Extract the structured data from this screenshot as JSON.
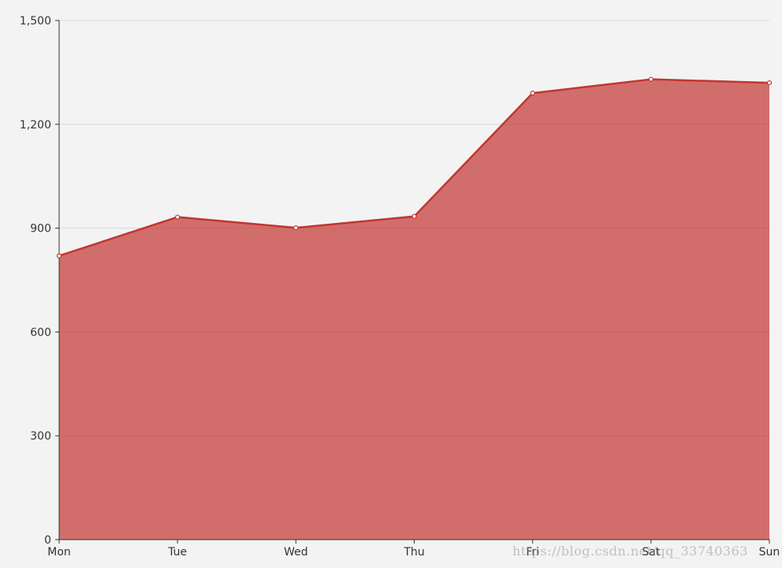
{
  "chart_data": {
    "type": "area",
    "categories": [
      "Mon",
      "Tue",
      "Wed",
      "Thu",
      "Fri",
      "Sat",
      "Sun"
    ],
    "values": [
      820,
      932,
      901,
      934,
      1290,
      1330,
      1320
    ],
    "ylim": [
      0,
      1500
    ],
    "yticks": [
      0,
      300,
      600,
      900,
      1200,
      1500
    ],
    "ytick_labels": [
      "0",
      "300",
      "600",
      "900",
      "1,200",
      "1,500"
    ],
    "grid": true,
    "colors": {
      "line": "#c23531",
      "fill": "#c23531",
      "grid": "#d9d9d9",
      "axis": "#333333",
      "background": "#f3f3f3"
    }
  },
  "watermark": "https://blog.csdn.net/qq_33740363"
}
